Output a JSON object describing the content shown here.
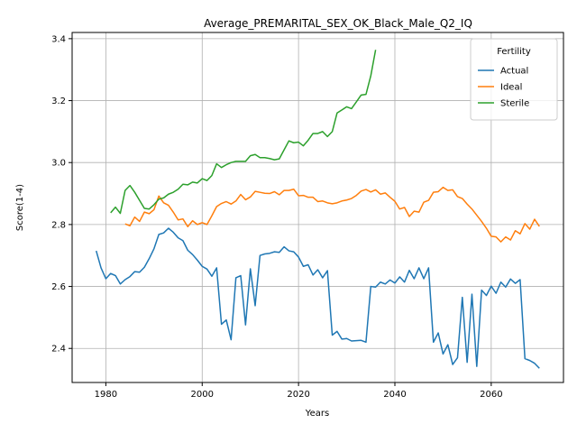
{
  "chart_data": {
    "type": "line",
    "title": "Average_PREMARITAL_SEX_OK_Black_Male_Q2_IQ",
    "xlabel": "Years",
    "ylabel": "Score(1-4)",
    "xlim": [
      1973,
      2075
    ],
    "ylim": [
      2.29,
      3.42
    ],
    "grid": true,
    "legend": {
      "title": "Fertility",
      "placement": "top-right"
    },
    "x_ticks": [
      1980,
      2000,
      2020,
      2040,
      2060
    ],
    "y_ticks": [
      2.4,
      2.6,
      2.8,
      3.0,
      3.2,
      3.4
    ],
    "x_tick_labels": [
      "1980",
      "2000",
      "2020",
      "2040",
      "2060"
    ],
    "y_tick_labels": [
      "2.4",
      "2.6",
      "2.8",
      "3.0",
      "3.2",
      "3.4"
    ],
    "series": [
      {
        "name": "Actual",
        "color": "#1f77b4",
        "points": [
          [
            1978,
            2.715
          ],
          [
            1979,
            2.66
          ],
          [
            1980,
            2.625
          ],
          [
            1981,
            2.642
          ],
          [
            1982,
            2.635
          ],
          [
            1983,
            2.608
          ],
          [
            1984,
            2.622
          ],
          [
            1985,
            2.632
          ],
          [
            1986,
            2.648
          ],
          [
            1987,
            2.646
          ],
          [
            1988,
            2.662
          ],
          [
            1989,
            2.69
          ],
          [
            1990,
            2.722
          ],
          [
            1991,
            2.768
          ],
          [
            1992,
            2.773
          ],
          [
            1993,
            2.788
          ],
          [
            1994,
            2.775
          ],
          [
            1995,
            2.757
          ],
          [
            1996,
            2.748
          ],
          [
            1997,
            2.717
          ],
          [
            1998,
            2.703
          ],
          [
            1999,
            2.685
          ],
          [
            2000,
            2.665
          ],
          [
            2001,
            2.656
          ],
          [
            2002,
            2.633
          ],
          [
            2003,
            2.66
          ],
          [
            2004,
            2.478
          ],
          [
            2005,
            2.492
          ],
          [
            2006,
            2.428
          ],
          [
            2007,
            2.628
          ],
          [
            2008,
            2.635
          ],
          [
            2009,
            2.476
          ],
          [
            2010,
            2.657
          ],
          [
            2011,
            2.538
          ],
          [
            2012,
            2.7
          ],
          [
            2013,
            2.705
          ],
          [
            2014,
            2.707
          ],
          [
            2015,
            2.712
          ],
          [
            2016,
            2.71
          ],
          [
            2017,
            2.728
          ],
          [
            2018,
            2.715
          ],
          [
            2019,
            2.712
          ],
          [
            2020,
            2.695
          ],
          [
            2021,
            2.665
          ],
          [
            2022,
            2.67
          ],
          [
            2023,
            2.637
          ],
          [
            2024,
            2.654
          ],
          [
            2025,
            2.628
          ],
          [
            2026,
            2.651
          ],
          [
            2027,
            2.443
          ],
          [
            2028,
            2.455
          ],
          [
            2029,
            2.43
          ],
          [
            2030,
            2.432
          ],
          [
            2031,
            2.424
          ],
          [
            2032,
            2.425
          ],
          [
            2033,
            2.426
          ],
          [
            2034,
            2.42
          ],
          [
            2035,
            2.6
          ],
          [
            2036,
            2.598
          ],
          [
            2037,
            2.614
          ],
          [
            2038,
            2.608
          ],
          [
            2039,
            2.621
          ],
          [
            2040,
            2.611
          ],
          [
            2041,
            2.631
          ],
          [
            2042,
            2.614
          ],
          [
            2043,
            2.652
          ],
          [
            2044,
            2.625
          ],
          [
            2045,
            2.66
          ],
          [
            2046,
            2.625
          ],
          [
            2047,
            2.66
          ],
          [
            2048,
            2.42
          ],
          [
            2049,
            2.45
          ],
          [
            2050,
            2.382
          ],
          [
            2051,
            2.412
          ],
          [
            2052,
            2.348
          ],
          [
            2053,
            2.37
          ],
          [
            2054,
            2.565
          ],
          [
            2055,
            2.355
          ],
          [
            2056,
            2.575
          ],
          [
            2057,
            2.342
          ],
          [
            2058,
            2.588
          ],
          [
            2059,
            2.571
          ],
          [
            2060,
            2.601
          ],
          [
            2061,
            2.578
          ],
          [
            2062,
            2.614
          ],
          [
            2063,
            2.598
          ],
          [
            2064,
            2.624
          ],
          [
            2065,
            2.61
          ],
          [
            2066,
            2.622
          ],
          [
            2067,
            2.367
          ],
          [
            2068,
            2.361
          ],
          [
            2069,
            2.352
          ],
          [
            2070,
            2.336
          ]
        ]
      },
      {
        "name": "Ideal",
        "color": "#ff7f0e",
        "points": [
          [
            1984,
            2.802
          ],
          [
            1985,
            2.796
          ],
          [
            1986,
            2.824
          ],
          [
            1987,
            2.81
          ],
          [
            1988,
            2.84
          ],
          [
            1989,
            2.835
          ],
          [
            1990,
            2.848
          ],
          [
            1991,
            2.892
          ],
          [
            1992,
            2.87
          ],
          [
            1993,
            2.862
          ],
          [
            1994,
            2.84
          ],
          [
            1995,
            2.815
          ],
          [
            1996,
            2.818
          ],
          [
            1997,
            2.793
          ],
          [
            1998,
            2.812
          ],
          [
            1999,
            2.8
          ],
          [
            2000,
            2.806
          ],
          [
            2001,
            2.8
          ],
          [
            2002,
            2.828
          ],
          [
            2003,
            2.858
          ],
          [
            2004,
            2.868
          ],
          [
            2005,
            2.874
          ],
          [
            2006,
            2.866
          ],
          [
            2007,
            2.876
          ],
          [
            2008,
            2.897
          ],
          [
            2009,
            2.88
          ],
          [
            2010,
            2.889
          ],
          [
            2011,
            2.907
          ],
          [
            2012,
            2.904
          ],
          [
            2013,
            2.901
          ],
          [
            2014,
            2.9
          ],
          [
            2015,
            2.906
          ],
          [
            2016,
            2.896
          ],
          [
            2017,
            2.91
          ],
          [
            2018,
            2.91
          ],
          [
            2019,
            2.914
          ],
          [
            2020,
            2.893
          ],
          [
            2021,
            2.894
          ],
          [
            2022,
            2.888
          ],
          [
            2023,
            2.888
          ],
          [
            2024,
            2.874
          ],
          [
            2025,
            2.876
          ],
          [
            2026,
            2.87
          ],
          [
            2027,
            2.867
          ],
          [
            2028,
            2.87
          ],
          [
            2029,
            2.876
          ],
          [
            2030,
            2.879
          ],
          [
            2031,
            2.884
          ],
          [
            2032,
            2.894
          ],
          [
            2033,
            2.908
          ],
          [
            2034,
            2.913
          ],
          [
            2035,
            2.905
          ],
          [
            2036,
            2.912
          ],
          [
            2037,
            2.898
          ],
          [
            2038,
            2.902
          ],
          [
            2039,
            2.888
          ],
          [
            2040,
            2.875
          ],
          [
            2041,
            2.85
          ],
          [
            2042,
            2.855
          ],
          [
            2043,
            2.826
          ],
          [
            2044,
            2.843
          ],
          [
            2045,
            2.84
          ],
          [
            2046,
            2.872
          ],
          [
            2047,
            2.878
          ],
          [
            2048,
            2.904
          ],
          [
            2049,
            2.906
          ],
          [
            2050,
            2.92
          ],
          [
            2051,
            2.91
          ],
          [
            2052,
            2.912
          ],
          [
            2053,
            2.89
          ],
          [
            2054,
            2.884
          ],
          [
            2055,
            2.866
          ],
          [
            2056,
            2.85
          ],
          [
            2057,
            2.83
          ],
          [
            2058,
            2.81
          ],
          [
            2059,
            2.788
          ],
          [
            2060,
            2.762
          ],
          [
            2061,
            2.76
          ],
          [
            2062,
            2.744
          ],
          [
            2063,
            2.76
          ],
          [
            2064,
            2.75
          ],
          [
            2065,
            2.78
          ],
          [
            2066,
            2.77
          ],
          [
            2067,
            2.803
          ],
          [
            2068,
            2.785
          ],
          [
            2069,
            2.817
          ],
          [
            2070,
            2.794
          ]
        ]
      },
      {
        "name": "Sterile",
        "color": "#2ca02c",
        "points": [
          [
            1981,
            2.838
          ],
          [
            1982,
            2.856
          ],
          [
            1983,
            2.836
          ],
          [
            1984,
            2.91
          ],
          [
            1985,
            2.926
          ],
          [
            1986,
            2.904
          ],
          [
            1987,
            2.878
          ],
          [
            1988,
            2.852
          ],
          [
            1989,
            2.85
          ],
          [
            1990,
            2.864
          ],
          [
            1991,
            2.882
          ],
          [
            1992,
            2.886
          ],
          [
            1993,
            2.898
          ],
          [
            1994,
            2.904
          ],
          [
            1995,
            2.914
          ],
          [
            1996,
            2.93
          ],
          [
            1997,
            2.928
          ],
          [
            1998,
            2.937
          ],
          [
            1999,
            2.934
          ],
          [
            2000,
            2.948
          ],
          [
            2001,
            2.942
          ],
          [
            2002,
            2.958
          ],
          [
            2003,
            2.996
          ],
          [
            2004,
            2.984
          ],
          [
            2005,
            2.993
          ],
          [
            2006,
            3.0
          ],
          [
            2007,
            3.004
          ],
          [
            2008,
            3.004
          ],
          [
            2009,
            3.004
          ],
          [
            2010,
            3.022
          ],
          [
            2011,
            3.026
          ],
          [
            2012,
            3.016
          ],
          [
            2013,
            3.016
          ],
          [
            2014,
            3.013
          ],
          [
            2015,
            3.009
          ],
          [
            2016,
            3.012
          ],
          [
            2017,
            3.041
          ],
          [
            2018,
            3.07
          ],
          [
            2019,
            3.064
          ],
          [
            2020,
            3.066
          ],
          [
            2021,
            3.054
          ],
          [
            2022,
            3.072
          ],
          [
            2023,
            3.094
          ],
          [
            2024,
            3.094
          ],
          [
            2025,
            3.1
          ],
          [
            2026,
            3.084
          ],
          [
            2027,
            3.1
          ],
          [
            2028,
            3.16
          ],
          [
            2029,
            3.17
          ],
          [
            2030,
            3.18
          ],
          [
            2031,
            3.174
          ],
          [
            2032,
            3.196
          ],
          [
            2033,
            3.218
          ],
          [
            2034,
            3.22
          ],
          [
            2035,
            3.28
          ],
          [
            2036,
            3.364
          ]
        ]
      }
    ]
  }
}
